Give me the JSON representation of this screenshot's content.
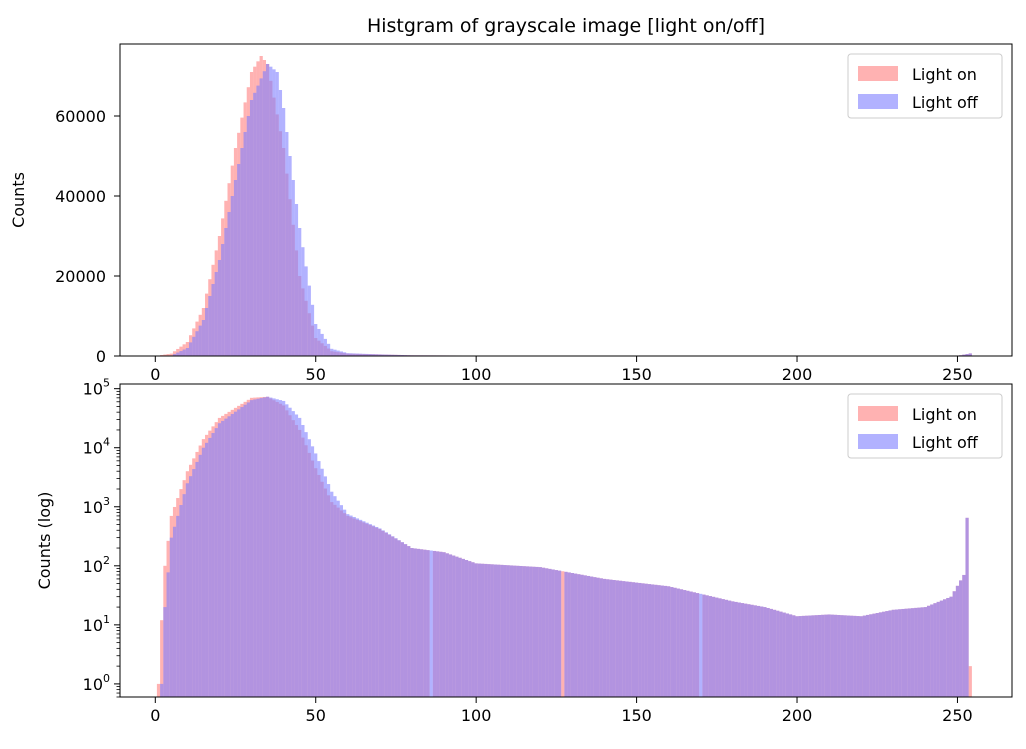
{
  "chart_data": [
    {
      "type": "histogram",
      "title": "Histgram of grayscale image [light on/off]",
      "xlabel": "",
      "ylabel": "Counts",
      "yscale": "linear",
      "xlim": [
        -11,
        267
      ],
      "ylim": [
        0,
        78000
      ],
      "xticks": [
        0,
        50,
        100,
        150,
        200,
        250
      ],
      "yticks": [
        0,
        20000,
        40000,
        60000
      ],
      "grid": false,
      "legend": "top-right",
      "bin_width": 1,
      "series": [
        {
          "name": "Light on",
          "color": "#ff7f7f",
          "alpha": 0.6,
          "bins": [
            {
              "x": 0,
              "y": 0
            },
            {
              "x": 5,
              "y": 600
            },
            {
              "x": 10,
              "y": 3500
            },
            {
              "x": 15,
              "y": 12000
            },
            {
              "x": 20,
              "y": 30000
            },
            {
              "x": 25,
              "y": 52000
            },
            {
              "x": 30,
              "y": 71000
            },
            {
              "x": 33,
              "y": 75000
            },
            {
              "x": 35,
              "y": 73000
            },
            {
              "x": 40,
              "y": 52000
            },
            {
              "x": 45,
              "y": 20000
            },
            {
              "x": 50,
              "y": 4500
            },
            {
              "x": 55,
              "y": 1200
            },
            {
              "x": 60,
              "y": 600
            },
            {
              "x": 70,
              "y": 400
            },
            {
              "x": 80,
              "y": 180
            },
            {
              "x": 100,
              "y": 110
            },
            {
              "x": 150,
              "y": 50
            },
            {
              "x": 200,
              "y": 15
            },
            {
              "x": 250,
              "y": 40
            },
            {
              "x": 254,
              "y": 650
            },
            {
              "x": 255,
              "y": 2
            }
          ]
        },
        {
          "name": "Light off",
          "color": "#7f7fff",
          "alpha": 0.6,
          "bins": [
            {
              "x": 0,
              "y": 0
            },
            {
              "x": 5,
              "y": 100
            },
            {
              "x": 10,
              "y": 2000
            },
            {
              "x": 15,
              "y": 9000
            },
            {
              "x": 20,
              "y": 24000
            },
            {
              "x": 25,
              "y": 44000
            },
            {
              "x": 30,
              "y": 64000
            },
            {
              "x": 35,
              "y": 73000
            },
            {
              "x": 38,
              "y": 71000
            },
            {
              "x": 40,
              "y": 62000
            },
            {
              "x": 45,
              "y": 32000
            },
            {
              "x": 50,
              "y": 8000
            },
            {
              "x": 55,
              "y": 1800
            },
            {
              "x": 60,
              "y": 700
            },
            {
              "x": 70,
              "y": 400
            },
            {
              "x": 80,
              "y": 180
            },
            {
              "x": 100,
              "y": 110
            },
            {
              "x": 150,
              "y": 50
            },
            {
              "x": 200,
              "y": 15
            },
            {
              "x": 250,
              "y": 40
            },
            {
              "x": 254,
              "y": 650
            },
            {
              "x": 255,
              "y": 0
            }
          ]
        }
      ]
    },
    {
      "type": "histogram",
      "title": "",
      "xlabel": "",
      "ylabel": "Counts (log)",
      "yscale": "log",
      "xlim": [
        -11,
        267
      ],
      "ylim": [
        0.6,
        120000
      ],
      "xticks": [
        0,
        50,
        100,
        150,
        200,
        250
      ],
      "yticks": [
        1,
        10,
        100,
        1000,
        10000,
        100000
      ],
      "ytick_labels": [
        {
          "base": "10",
          "exp": "0"
        },
        {
          "base": "10",
          "exp": "1"
        },
        {
          "base": "10",
          "exp": "2"
        },
        {
          "base": "10",
          "exp": "3"
        },
        {
          "base": "10",
          "exp": "4"
        },
        {
          "base": "10",
          "exp": "5"
        }
      ],
      "grid": false,
      "legend": "top-right",
      "bin_width": 1,
      "series": [
        {
          "name": "Light on",
          "color": "#ff7f7f",
          "alpha": 0.6,
          "bins": [
            {
              "x": 1,
              "y": 1
            },
            {
              "x": 2,
              "y": 12
            },
            {
              "x": 3,
              "y": 100
            },
            {
              "x": 5,
              "y": 700
            },
            {
              "x": 10,
              "y": 4000
            },
            {
              "x": 15,
              "y": 14000
            },
            {
              "x": 20,
              "y": 32000
            },
            {
              "x": 30,
              "y": 70000
            },
            {
              "x": 35,
              "y": 73000
            },
            {
              "x": 40,
              "y": 52000
            },
            {
              "x": 45,
              "y": 20000
            },
            {
              "x": 50,
              "y": 4500
            },
            {
              "x": 55,
              "y": 1200
            },
            {
              "x": 60,
              "y": 700
            },
            {
              "x": 70,
              "y": 420
            },
            {
              "x": 80,
              "y": 200
            },
            {
              "x": 86,
              "y": 0
            },
            {
              "x": 90,
              "y": 170
            },
            {
              "x": 100,
              "y": 110
            },
            {
              "x": 120,
              "y": 95
            },
            {
              "x": 140,
              "y": 60
            },
            {
              "x": 160,
              "y": 45
            },
            {
              "x": 170,
              "y": 0
            },
            {
              "x": 180,
              "y": 25
            },
            {
              "x": 190,
              "y": 20
            },
            {
              "x": 200,
              "y": 14
            },
            {
              "x": 210,
              "y": 15
            },
            {
              "x": 220,
              "y": 14
            },
            {
              "x": 230,
              "y": 18
            },
            {
              "x": 240,
              "y": 20
            },
            {
              "x": 248,
              "y": 30
            },
            {
              "x": 252,
              "y": 70
            },
            {
              "x": 253,
              "y": 650
            },
            {
              "x": 254,
              "y": 2
            }
          ]
        },
        {
          "name": "Light off",
          "color": "#7f7fff",
          "alpha": 0.6,
          "bins": [
            {
              "x": 2,
              "y": 1
            },
            {
              "x": 3,
              "y": 20
            },
            {
              "x": 5,
              "y": 300
            },
            {
              "x": 10,
              "y": 2500
            },
            {
              "x": 15,
              "y": 10000
            },
            {
              "x": 20,
              "y": 26000
            },
            {
              "x": 30,
              "y": 64000
            },
            {
              "x": 35,
              "y": 73000
            },
            {
              "x": 40,
              "y": 62000
            },
            {
              "x": 45,
              "y": 32000
            },
            {
              "x": 50,
              "y": 8000
            },
            {
              "x": 55,
              "y": 1800
            },
            {
              "x": 60,
              "y": 750
            },
            {
              "x": 70,
              "y": 430
            },
            {
              "x": 80,
              "y": 200
            },
            {
              "x": 90,
              "y": 170
            },
            {
              "x": 100,
              "y": 110
            },
            {
              "x": 120,
              "y": 95
            },
            {
              "x": 127,
              "y": 0
            },
            {
              "x": 140,
              "y": 60
            },
            {
              "x": 160,
              "y": 45
            },
            {
              "x": 180,
              "y": 25
            },
            {
              "x": 190,
              "y": 20
            },
            {
              "x": 200,
              "y": 14
            },
            {
              "x": 210,
              "y": 15
            },
            {
              "x": 220,
              "y": 14
            },
            {
              "x": 230,
              "y": 18
            },
            {
              "x": 240,
              "y": 20
            },
            {
              "x": 248,
              "y": 30
            },
            {
              "x": 252,
              "y": 70
            },
            {
              "x": 253,
              "y": 650
            }
          ]
        }
      ]
    }
  ]
}
